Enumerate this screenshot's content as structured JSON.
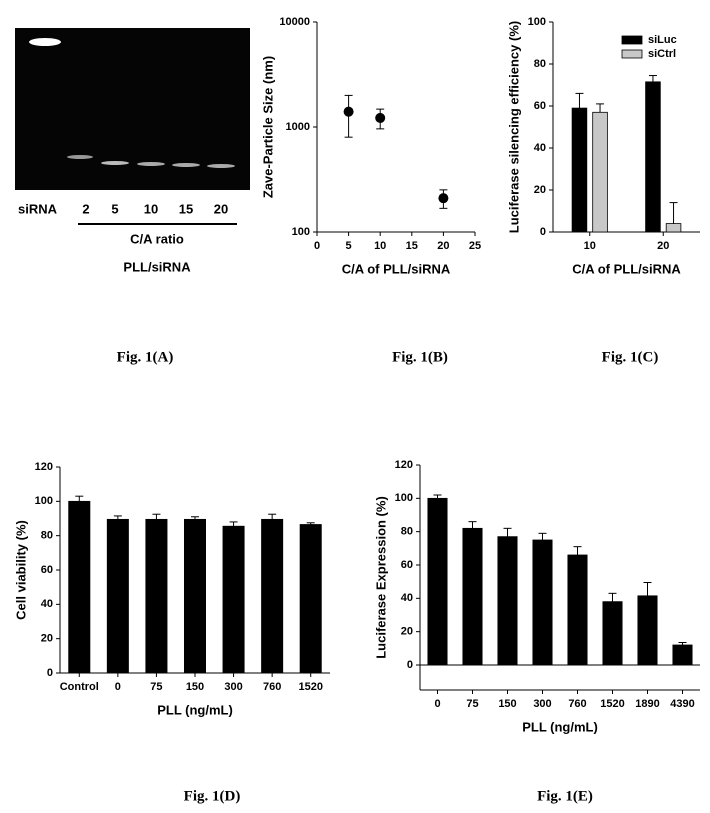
{
  "gel": {
    "lane_label": "siRNA",
    "lanes": [
      "2",
      "5",
      "10",
      "15",
      "20"
    ],
    "axis_label": "C/A ratio",
    "complex": "PLL/siRNA"
  },
  "captions": [
    "Fig. 1(A)",
    "Fig. 1(B)",
    "Fig. 1(C)",
    "Fig. 1(D)",
    "Fig. 1(E)"
  ],
  "chart_data": [
    {
      "type": "scatter",
      "x": [
        5,
        10,
        20
      ],
      "values": [
        1400,
        1220,
        210
      ],
      "errors": [
        600,
        260,
        42
      ],
      "color": "#000000",
      "xlim": [
        0,
        25
      ],
      "xticks": [
        0,
        5,
        10,
        15,
        20,
        25
      ],
      "ylim": [
        100,
        10000
      ],
      "yticks": [
        100,
        1000,
        10000
      ],
      "log_y": true,
      "xlabel": "C/A of PLL/siRNA",
      "ylabel": "Zave-Particle Size (nm)"
    },
    {
      "type": "bar",
      "categories": [
        "10",
        "20"
      ],
      "series": [
        {
          "name": "siLuc",
          "color": "#000000",
          "values": [
            59,
            71.5
          ],
          "errors": [
            7,
            3
          ]
        },
        {
          "name": "siCtrl",
          "color": "#c8c8c8",
          "values": [
            57,
            4
          ],
          "errors": [
            4,
            10
          ]
        }
      ],
      "ylim": [
        0,
        100
      ],
      "yticks": [
        0,
        20,
        40,
        60,
        80,
        100
      ],
      "legend": "top-right",
      "xlabel": "C/A of PLL/siRNA",
      "ylabel": "Luciferase silencing efficiency (%)"
    },
    {
      "type": "bar",
      "categories": [
        "Control",
        "0",
        "75",
        "150",
        "300",
        "760",
        "1520"
      ],
      "series": [
        {
          "color": "#000000",
          "values": [
            100,
            89.5,
            89.5,
            89.5,
            85.5,
            89.5,
            86.5
          ],
          "errors": [
            3,
            2,
            3,
            1.5,
            2.5,
            3,
            1
          ]
        }
      ],
      "ylim": [
        0,
        120
      ],
      "yticks": [
        0,
        20,
        40,
        60,
        80,
        100,
        120
      ],
      "xlabel": "PLL (ng/mL)",
      "ylabel": "Cell viability (%)"
    },
    {
      "type": "bar",
      "categories": [
        "0",
        "75",
        "150",
        "300",
        "760",
        "1520",
        "1890",
        "4390"
      ],
      "series": [
        {
          "color": "#000000",
          "values": [
            100,
            82,
            77,
            75,
            66,
            38,
            41.5,
            12
          ],
          "errors": [
            2,
            4,
            5,
            4,
            5,
            5,
            8,
            1.5
          ]
        }
      ],
      "ylim": [
        -15,
        120
      ],
      "yticks": [
        0,
        20,
        40,
        60,
        80,
        100,
        120
      ],
      "xlabel": "PLL (ng/mL)",
      "ylabel": "Luciferase Expression (%)"
    }
  ]
}
